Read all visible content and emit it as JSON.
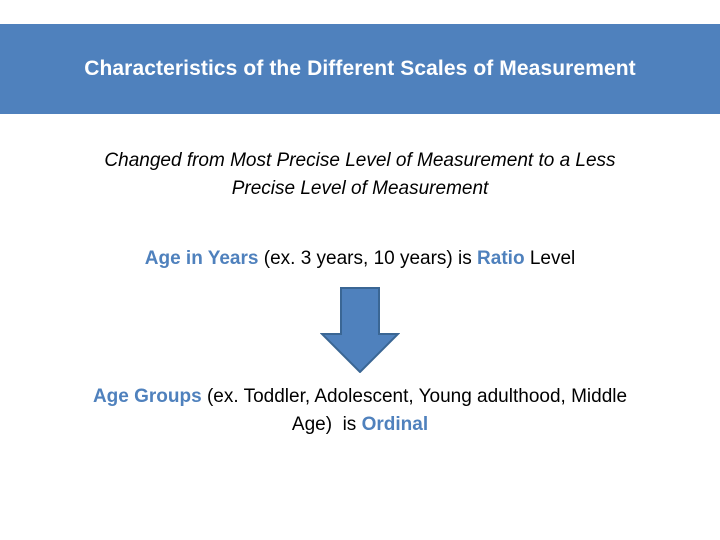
{
  "slide": {
    "title": "Characteristics of the Different Scales of Measurement",
    "subtitle_line1": "Changed from Most Precise Level of Measurement to a Less",
    "subtitle_line2": "Precise Level of Measurement",
    "ratio_line": {
      "term": "Age in Years",
      "example": " (ex. 3 years, 10 years) is ",
      "level": "Ratio",
      "suffix": " Level"
    },
    "ordinal_line": {
      "term": "Age Groups",
      "example_part1": " (ex. Toddler, Adolescent, Young adulthood, Middle",
      "example_part2": "Age)  is ",
      "level": "Ordinal"
    },
    "arrow_icon": "down-arrow-icon"
  },
  "colors": {
    "accent": "#4f81bd",
    "title_text": "#ffffff",
    "arrow_stroke": "#3a6694"
  }
}
